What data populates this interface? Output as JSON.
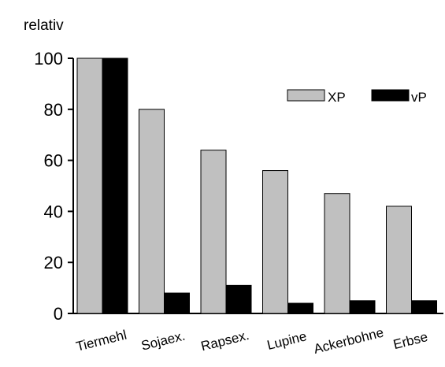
{
  "chart_data": {
    "type": "bar",
    "title": "",
    "xlabel": "",
    "ylabel": "relativ",
    "ylim": [
      0,
      100
    ],
    "yticks": [
      0,
      20,
      40,
      60,
      80,
      100
    ],
    "categories": [
      "Tiermehl",
      "Sojaex.",
      "Rapsex.",
      "Lupine",
      "Ackerbohne",
      "Erbse"
    ],
    "series": [
      {
        "name": "XP",
        "color": "#c0c0c0",
        "values": [
          100,
          80,
          64,
          56,
          47,
          42
        ]
      },
      {
        "name": "vP",
        "color": "#000000",
        "values": [
          100,
          8,
          11,
          4,
          5,
          5
        ]
      }
    ],
    "legend_position": "top-right",
    "grid": false
  }
}
